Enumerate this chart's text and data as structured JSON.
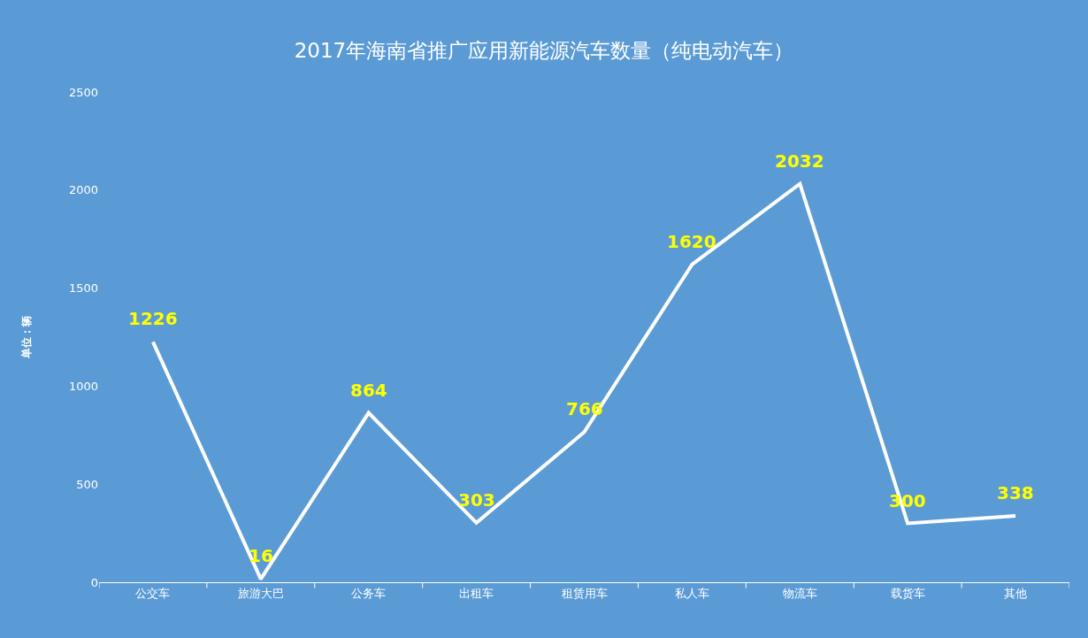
{
  "chart_data": {
    "type": "line",
    "title": "2017年海南省推广应用新能源汽车数量（纯电动汽车）",
    "ylabel": "单位：辆",
    "categories": [
      "公交车",
      "旅游大巴",
      "公务车",
      "出租车",
      "租赁用车",
      "私人车",
      "物流车",
      "载货车",
      "其他"
    ],
    "series": [
      {
        "color": "#ffffff",
        "values": [
          1226,
          16,
          864,
          303,
          766,
          1620,
          2032,
          300,
          338
        ]
      }
    ],
    "ylim": [
      0,
      2500
    ],
    "yticks": [
      0,
      500,
      1000,
      1500,
      2000,
      2500
    ],
    "data_labels": true,
    "grid": false,
    "marker": "none",
    "line_style": "solid"
  }
}
